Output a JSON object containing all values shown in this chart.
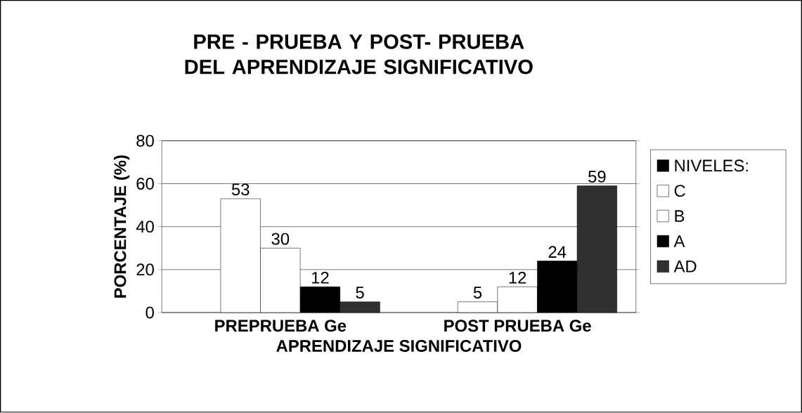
{
  "chart_data": {
    "type": "bar",
    "title": "PRE - PRUEBA Y POST- PRUEBA DEL APRENDIZAJE SIGNIFICATIVO",
    "xlabel": "APRENDIZAJE SIGNIFICATIVO",
    "ylabel": "PORCENTAJE (%)",
    "categories": [
      "PREPRUEBA Ge",
      "POST PRUEBA Ge"
    ],
    "series": [
      {
        "name": "NIVELES:",
        "color": "#000000",
        "values": [
          null,
          null
        ]
      },
      {
        "name": "C",
        "color": "#ffffff",
        "values": [
          53,
          5
        ]
      },
      {
        "name": "B",
        "color": "#ffffff",
        "values": [
          30,
          12
        ]
      },
      {
        "name": "A",
        "color": "#000000",
        "values": [
          12,
          24
        ]
      },
      {
        "name": "AD",
        "color": "#303030",
        "values": [
          5,
          59
        ]
      }
    ],
    "ylim": [
      0,
      80
    ],
    "yticks": [
      0,
      20,
      40,
      60,
      80
    ],
    "grid": "y",
    "legend": "right",
    "data_labels": true
  }
}
